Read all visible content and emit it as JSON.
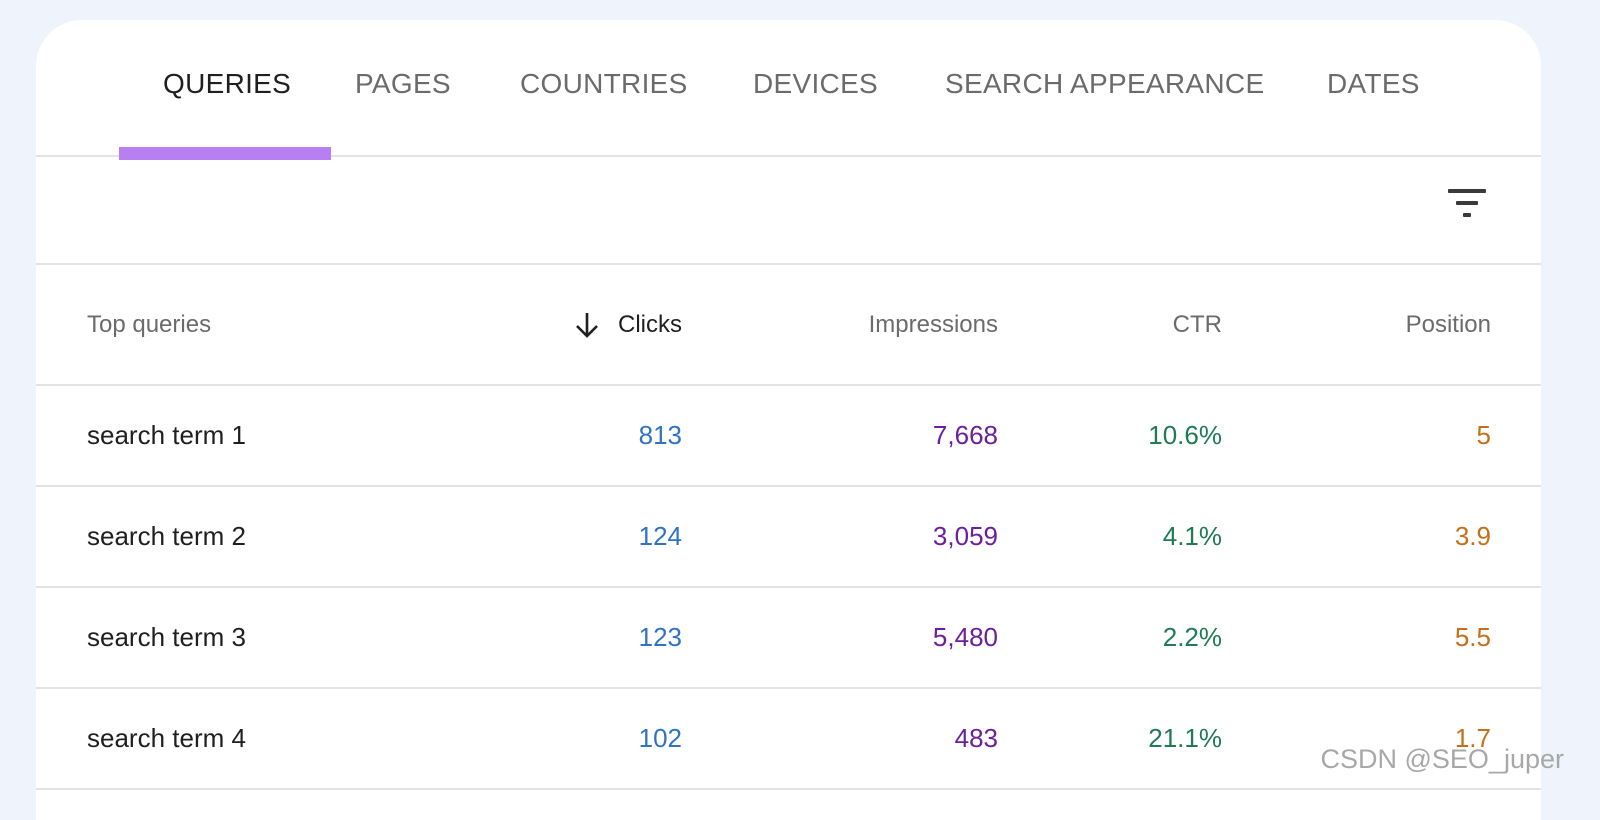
{
  "tabs": [
    {
      "label": "QUERIES",
      "active": true
    },
    {
      "label": "PAGES",
      "active": false
    },
    {
      "label": "COUNTRIES",
      "active": false
    },
    {
      "label": "DEVICES",
      "active": false
    },
    {
      "label": "SEARCH APPEARANCE",
      "active": false
    },
    {
      "label": "DATES",
      "active": false
    }
  ],
  "toolbar": {
    "filter_icon": "filter-list-icon"
  },
  "table": {
    "columns": {
      "query": "Top queries",
      "clicks": "Clicks",
      "impressions": "Impressions",
      "ctr": "CTR",
      "position": "Position"
    },
    "sort": {
      "column": "clicks",
      "direction": "descending",
      "icon": "arrow-down-icon"
    },
    "rows": [
      {
        "query": "search term 1",
        "clicks": "813",
        "impressions": "7,668",
        "ctr": "10.6%",
        "position": "5"
      },
      {
        "query": "search term 2",
        "clicks": "124",
        "impressions": "3,059",
        "ctr": "4.1%",
        "position": "3.9"
      },
      {
        "query": "search term 3",
        "clicks": "123",
        "impressions": "5,480",
        "ctr": "2.2%",
        "position": "5.5"
      },
      {
        "query": "search term 4",
        "clicks": "102",
        "impressions": "483",
        "ctr": "21.1%",
        "position": "1.7"
      }
    ]
  },
  "colors": {
    "tab_indicator": "#b77ff2",
    "clicks": "#2f73c2",
    "impressions": "#6b1f9c",
    "ctr": "#1f7a55",
    "position": "#c57018"
  },
  "watermark": "CSDN @SEO_juper"
}
